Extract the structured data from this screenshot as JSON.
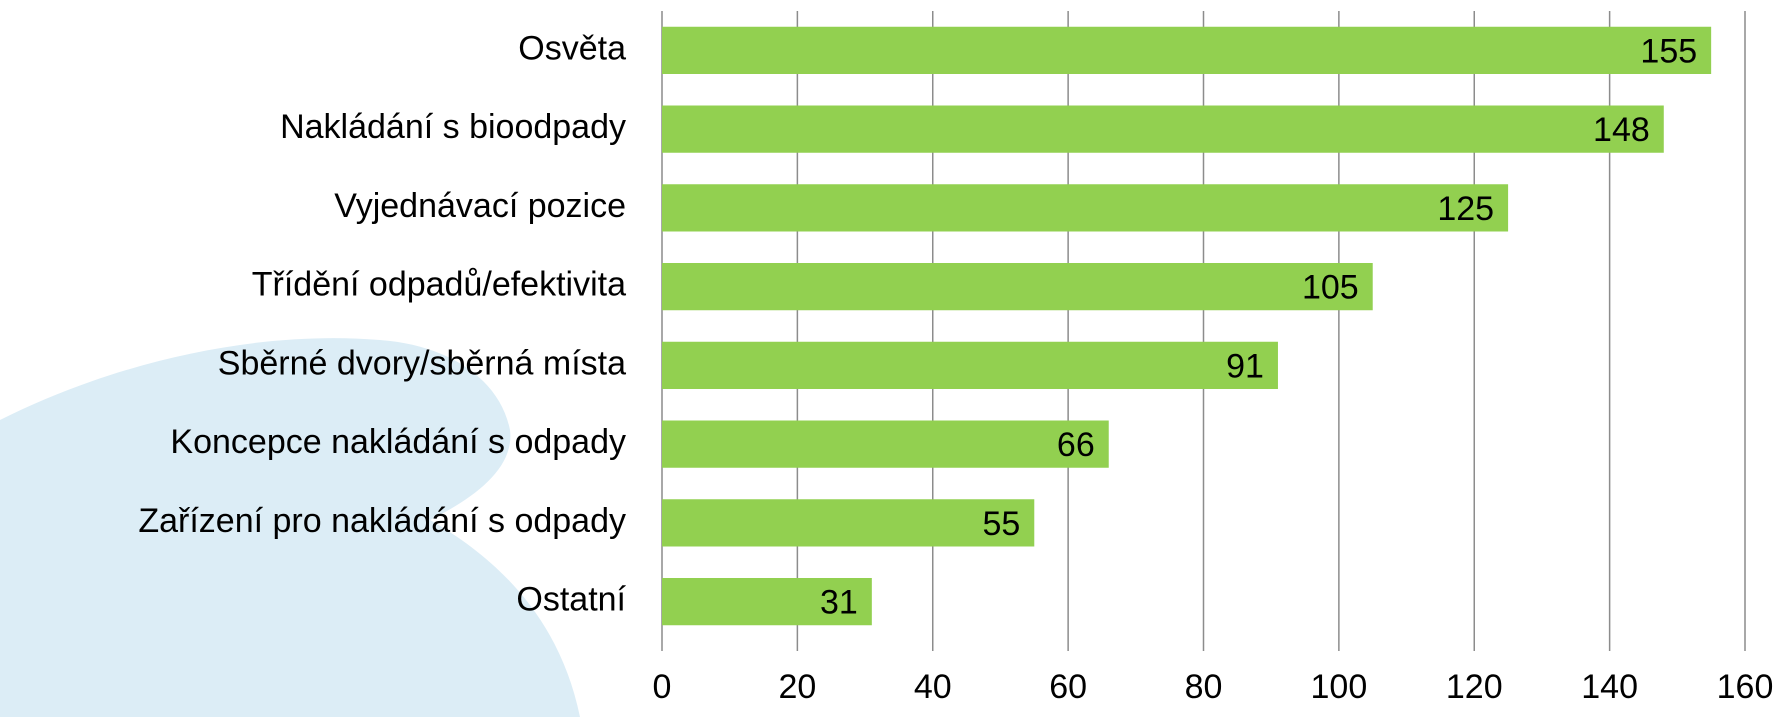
{
  "chart_data": {
    "type": "bar",
    "orientation": "horizontal",
    "categories": [
      "Osvěta",
      "Nakládání s bioodpady",
      "Vyjednávací pozice",
      "Třídění odpadů/efektivita",
      "Sběrné dvory/sběrná místa",
      "Koncepce nakládání s odpady",
      "Zařízení pro nakládání s odpady",
      "Ostatní"
    ],
    "values": [
      155,
      148,
      125,
      105,
      91,
      66,
      55,
      31
    ],
    "color": "#92d050",
    "xlim": [
      0,
      160
    ],
    "xticks": [
      0,
      20,
      40,
      60,
      80,
      100,
      120,
      140,
      160
    ],
    "grid": true
  }
}
